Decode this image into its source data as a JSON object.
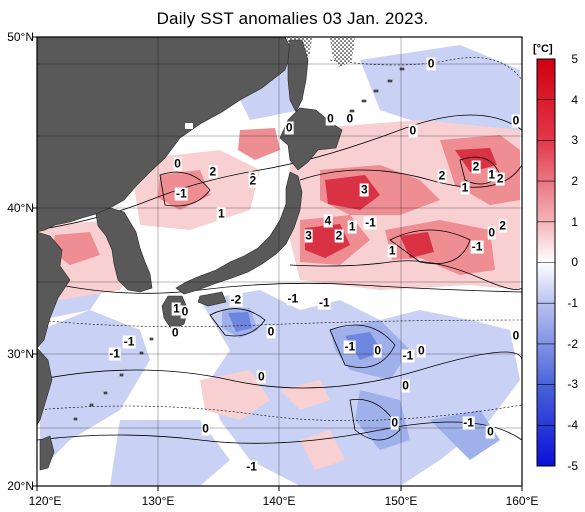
{
  "title": "Daily SST anomalies 03 Jan. 2023.",
  "map": {
    "lon_range": [
      120,
      160
    ],
    "lat_range": [
      20,
      50
    ],
    "lon_ticks": [
      "120°E",
      "130°E",
      "140°E",
      "150°E",
      "160°E"
    ],
    "lat_ticks": [
      "50°N",
      "40°N",
      "30°N",
      "20°N"
    ],
    "land_color": "#595959",
    "ice_note_pattern": "hatched"
  },
  "colorbar": {
    "unit": "[°C]",
    "ticks": [
      "5",
      "4",
      "3",
      "2",
      "1",
      "0",
      "-1",
      "-2",
      "-3",
      "-4",
      "-5"
    ],
    "range": [
      -5,
      5
    ]
  },
  "annotations": [
    {
      "text": "0",
      "lon": 152.5,
      "lat": 48.2
    },
    {
      "text": "0",
      "lon": 140.8,
      "lat": 43.9
    },
    {
      "text": "0",
      "lon": 144.2,
      "lat": 44.5
    },
    {
      "text": "0",
      "lon": 145.8,
      "lat": 44.5
    },
    {
      "text": "0",
      "lon": 151.0,
      "lat": 43.7
    },
    {
      "text": "0",
      "lon": 160.0,
      "lat": 44.4
    },
    {
      "text": "0",
      "lon": 131.6,
      "lat": 41.5
    },
    {
      "text": "2",
      "lon": 134.5,
      "lat": 41.0
    },
    {
      "text": "0",
      "lon": 137.8,
      "lat": 40.6
    },
    {
      "text": "2",
      "lon": 137.8,
      "lat": 40.4
    },
    {
      "text": "-1",
      "lon": 131.9,
      "lat": 39.5
    },
    {
      "text": "1",
      "lon": 135.2,
      "lat": 38.2
    },
    {
      "text": "2",
      "lon": 153.4,
      "lat": 40.7
    },
    {
      "text": "2",
      "lon": 156.2,
      "lat": 41.3
    },
    {
      "text": "1",
      "lon": 157.5,
      "lat": 40.8
    },
    {
      "text": "2",
      "lon": 158.2,
      "lat": 40.5
    },
    {
      "text": "3",
      "lon": 147.0,
      "lat": 39.8
    },
    {
      "text": "1",
      "lon": 155.3,
      "lat": 39.9
    },
    {
      "text": "4",
      "lon": 144.0,
      "lat": 37.7
    },
    {
      "text": "1",
      "lon": 146.0,
      "lat": 37.3
    },
    {
      "text": "-1",
      "lon": 147.5,
      "lat": 37.6
    },
    {
      "text": "0",
      "lon": 157.5,
      "lat": 36.9
    },
    {
      "text": "2",
      "lon": 158.4,
      "lat": 37.4
    },
    {
      "text": "3",
      "lon": 142.4,
      "lat": 36.7
    },
    {
      "text": "2",
      "lon": 144.9,
      "lat": 36.7
    },
    {
      "text": "1",
      "lon": 149.3,
      "lat": 35.7
    },
    {
      "text": "-1",
      "lon": 156.3,
      "lat": 36.0
    },
    {
      "text": "1",
      "lon": 131.5,
      "lat": 31.8
    },
    {
      "text": "0",
      "lon": 132.2,
      "lat": 31.6
    },
    {
      "text": "-2",
      "lon": 136.4,
      "lat": 32.4
    },
    {
      "text": "-1",
      "lon": 141.1,
      "lat": 32.5
    },
    {
      "text": "-1",
      "lon": 143.7,
      "lat": 32.2
    },
    {
      "text": "0",
      "lon": 131.4,
      "lat": 30.2
    },
    {
      "text": "-1",
      "lon": 127.6,
      "lat": 29.6
    },
    {
      "text": "0",
      "lon": 139.3,
      "lat": 30.3
    },
    {
      "text": "0",
      "lon": 161.0,
      "lat": 30.0
    },
    {
      "text": "-1",
      "lon": 126.4,
      "lat": 28.8
    },
    {
      "text": "-1",
      "lon": 145.8,
      "lat": 29.3
    },
    {
      "text": "0",
      "lon": 148.1,
      "lat": 29.0
    },
    {
      "text": "-1",
      "lon": 150.6,
      "lat": 28.7
    },
    {
      "text": "0",
      "lon": 151.7,
      "lat": 29.0
    },
    {
      "text": "0",
      "lon": 138.5,
      "lat": 27.3
    },
    {
      "text": "0",
      "lon": 150.4,
      "lat": 26.7
    },
    {
      "text": "0",
      "lon": 133.9,
      "lat": 23.8
    },
    {
      "text": "0",
      "lon": 149.5,
      "lat": 24.2
    },
    {
      "text": "-1",
      "lon": 155.6,
      "lat": 24.2
    },
    {
      "text": "0",
      "lon": 157.4,
      "lat": 23.6
    },
    {
      "text": "-1",
      "lon": 137.7,
      "lat": 21.3
    }
  ]
}
